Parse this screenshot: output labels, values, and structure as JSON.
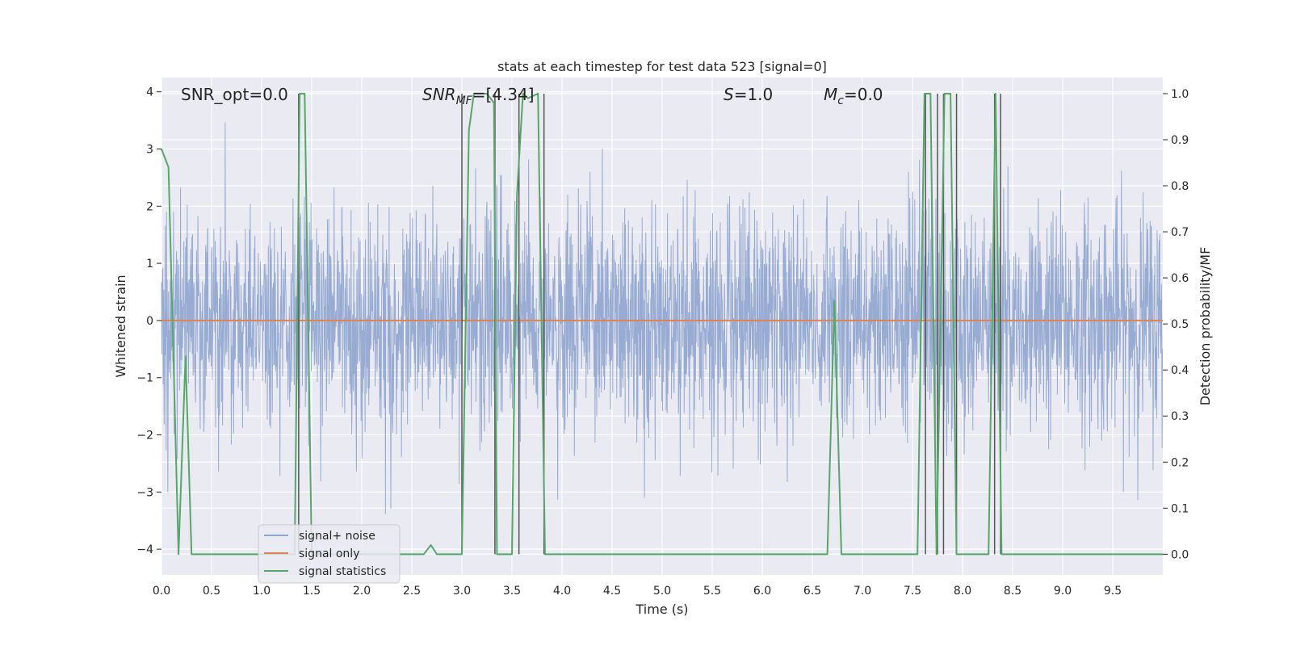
{
  "chart_data": {
    "type": "line",
    "title": "stats at each timestep for test data 523 [signal=0]",
    "xlabel": "Time (s)",
    "ylabel": "Whitened strain",
    "y2label": "Detection probability/MF",
    "xlim": [
      0.0,
      10.0
    ],
    "ylim": [
      -4.45,
      4.25
    ],
    "y2lim": [
      -0.045,
      1.035
    ],
    "xticks": [
      "0.0",
      "0.5",
      "1.0",
      "1.5",
      "2.0",
      "2.5",
      "3.0",
      "3.5",
      "4.0",
      "4.5",
      "5.0",
      "5.5",
      "6.0",
      "6.5",
      "7.0",
      "7.5",
      "8.0",
      "8.5",
      "9.0",
      "9.5"
    ],
    "yticks": [
      "4",
      "3",
      "2",
      "1",
      "0",
      "−1",
      "−2",
      "−3",
      "−4"
    ],
    "y2ticks": [
      "1.0",
      "0.9",
      "0.8",
      "0.7",
      "0.6",
      "0.5",
      "0.4",
      "0.3",
      "0.2",
      "0.1",
      "0.0"
    ],
    "grid": true,
    "legend_position": "lower-left",
    "annotations": [
      {
        "text": "SNR_opt=0.0"
      },
      {
        "text": "SNR_MF=[4.34]",
        "base": "SNR",
        "sub": "MF",
        "rest": "=[4.34]"
      },
      {
        "text": "S=1.0",
        "base": "S",
        "rest": "=1.0"
      },
      {
        "text": "M_c=0.0",
        "base": "M",
        "sub": "c",
        "rest": "=0.0"
      }
    ],
    "series": [
      {
        "name": "signal+ noise",
        "axis": "left",
        "color": "#8fa5cf",
        "duration": 10.0,
        "sigma": 1.0,
        "description_of_values": "white Gaussian noise, unit variance"
      },
      {
        "name": "signal only",
        "axis": "left",
        "color": "#dd8452",
        "x": [
          0.0,
          10.0
        ],
        "y": [
          0.0,
          0.0
        ]
      },
      {
        "name": "signal statistics",
        "axis": "right",
        "color": "#55a868",
        "x": [
          0.0,
          0.07,
          0.17,
          0.24,
          0.3,
          1.33,
          1.38,
          1.43,
          1.5,
          1.57,
          2.62,
          2.69,
          2.75,
          3.0,
          3.07,
          3.12,
          3.25,
          3.32,
          3.35,
          3.5,
          3.55,
          3.61,
          3.66,
          3.76,
          3.83,
          3.9,
          6.65,
          6.72,
          6.79,
          7.55,
          7.62,
          7.68,
          7.74,
          7.82,
          7.88,
          7.94,
          8.06,
          8.26,
          8.33,
          8.39,
          8.46,
          10.0
        ],
        "y": [
          0.88,
          0.84,
          0.0,
          0.43,
          0.0,
          0.0,
          1.0,
          1.0,
          0.0,
          0.0,
          0.0,
          0.02,
          0.0,
          0.0,
          0.92,
          1.0,
          1.0,
          0.98,
          0.0,
          0.0,
          0.78,
          1.0,
          0.99,
          1.0,
          0.0,
          0.0,
          0.0,
          0.55,
          0.0,
          0.0,
          1.0,
          1.0,
          0.0,
          1.0,
          1.0,
          0.0,
          0.0,
          0.0,
          1.0,
          0.0,
          0.0,
          0.0
        ]
      }
    ],
    "detection_markers": {
      "color": "#555555",
      "x": [
        1.37,
        3.0,
        3.33,
        3.57,
        3.82,
        7.63,
        7.75,
        7.81,
        7.94,
        8.32,
        8.38
      ],
      "top": 1.0,
      "bottom": 0.0
    }
  }
}
